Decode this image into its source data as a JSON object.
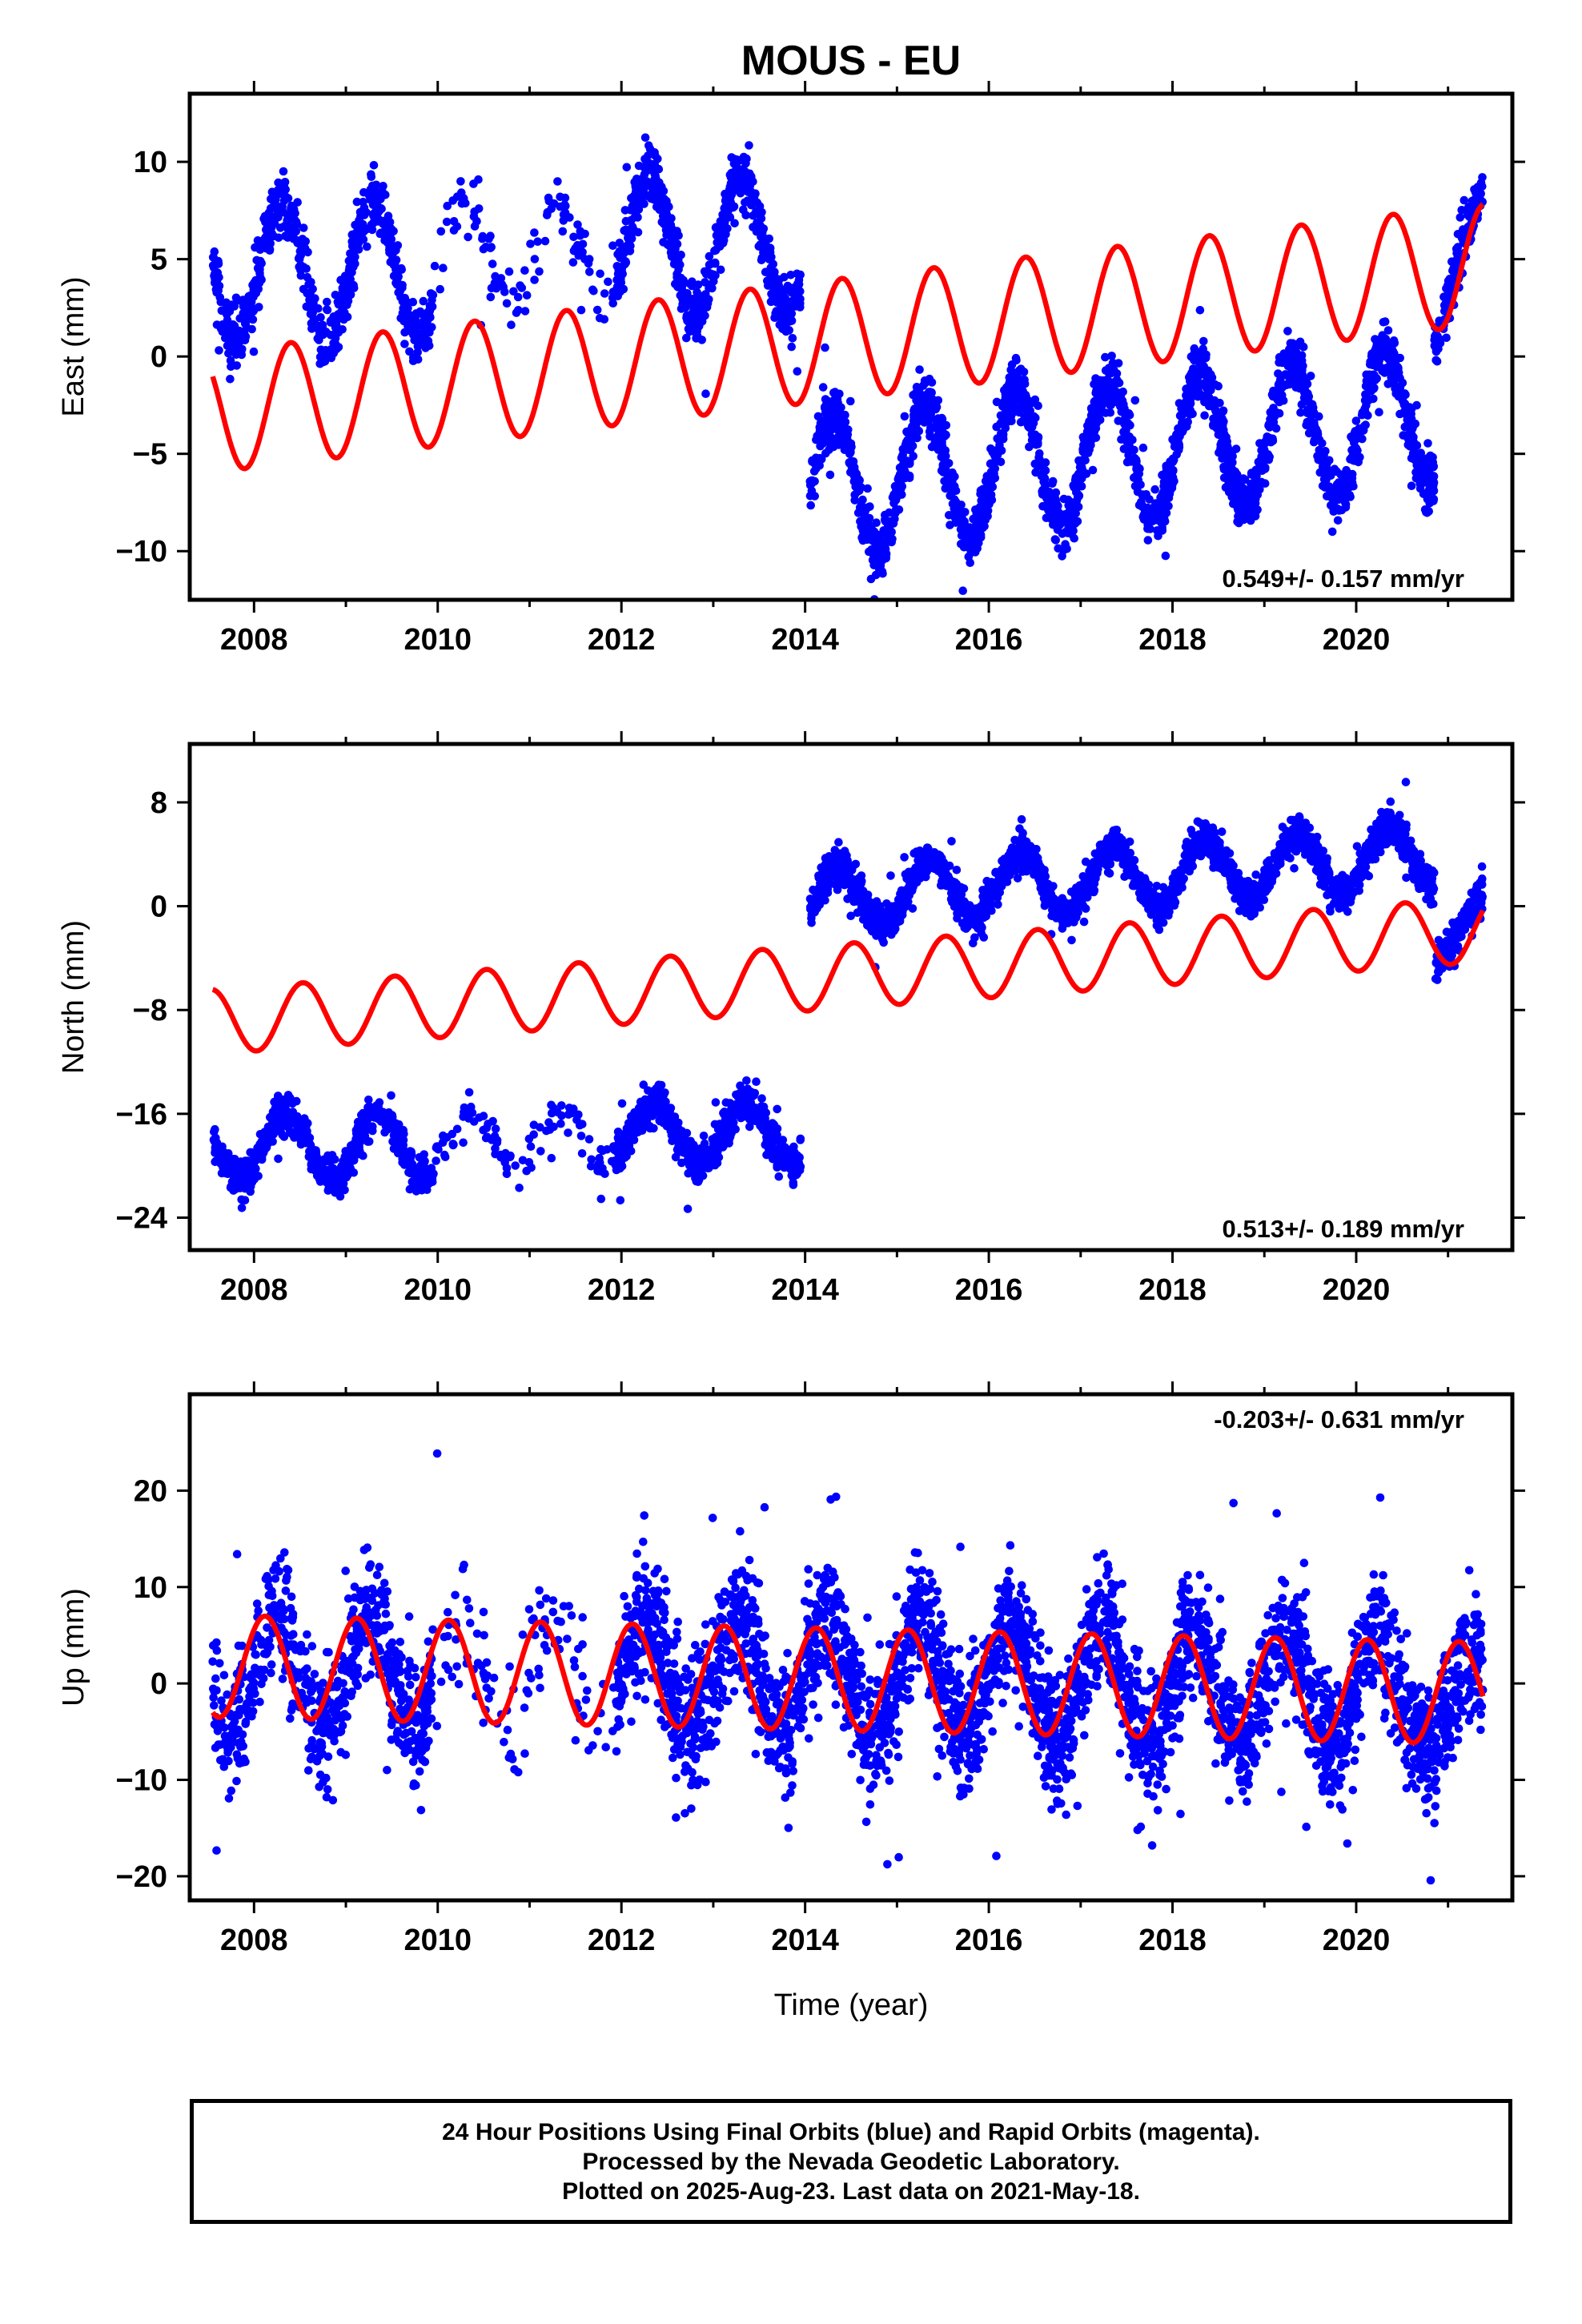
{
  "title": "MOUS - EU",
  "xlabel": "Time (year)",
  "colors": {
    "data": "#0000ff",
    "model": "#ff0000",
    "frame": "#000000"
  },
  "footer": {
    "line1": "24 Hour Positions Using Final Orbits (blue) and Rapid Orbits (magenta).",
    "line2": "Processed by the Nevada Geodetic Laboratory.",
    "line3": "Plotted on 2025-Aug-23. Last data on 2021-May-18."
  },
  "chart_data": [
    {
      "type": "scatter",
      "ylabel": "East (mm)",
      "xlim": [
        2007.3,
        2021.7
      ],
      "ylim": [
        -12.5,
        13.5
      ],
      "xticks": [
        2008,
        2010,
        2012,
        2014,
        2016,
        2018,
        2020
      ],
      "yticks": [
        -10,
        -5,
        0,
        5,
        10
      ],
      "ytick_labels": [
        "−10",
        "−5",
        "0",
        "5",
        "10"
      ],
      "rate_label": "0.549+/- 0.157 mm/yr",
      "rate_position": "bottom-right",
      "series": [
        {
          "role": "observations",
          "segments": [
            {
              "x0": 2007.55,
              "x1": 2009.95,
              "offset": 4.5,
              "amp": 3.5,
              "phase": 0.05,
              "trend": 0.0,
              "noise": 1.3,
              "n": 620
            },
            {
              "x0": 2009.95,
              "x1": 2011.95,
              "offset": 5.5,
              "amp": 2.5,
              "phase": 0.05,
              "trend": 0.0,
              "noise": 1.5,
              "n": 110
            },
            {
              "x0": 2011.95,
              "x1": 2013.95,
              "offset": 5.8,
              "amp": 3.5,
              "phase": 0.05,
              "trend": 0.0,
              "noise": 1.2,
              "n": 640
            },
            {
              "x0": 2014.05,
              "x1": 2020.85,
              "offset": -6.7,
              "amp": 3.6,
              "phase": 0.05,
              "trend": 0.549,
              "noise": 1.2,
              "n": 2200
            },
            {
              "x0": 2020.85,
              "x1": 2021.38,
              "offset": 1.4,
              "amp": 1.0,
              "phase": 0.05,
              "trend": 12.0,
              "noise": 1.0,
              "n": 170
            }
          ]
        },
        {
          "role": "model",
          "segments": [
            {
              "x0": 2007.55,
              "x1": 2021.38,
              "offset": -2.85,
              "amp": 3.1,
              "phase": 0.15,
              "trend": 0.549
            }
          ]
        }
      ]
    },
    {
      "type": "scatter",
      "ylabel": "North (mm)",
      "xlim": [
        2007.3,
        2021.7
      ],
      "ylim": [
        -26.5,
        12.5
      ],
      "xticks": [
        2008,
        2010,
        2012,
        2014,
        2016,
        2018,
        2020
      ],
      "yticks": [
        -24,
        -16,
        -8,
        0,
        8
      ],
      "ytick_labels": [
        "−24",
        "−16",
        "−8",
        "0",
        "8"
      ],
      "rate_label": "0.513+/- 0.189 mm/yr",
      "rate_position": "bottom-right",
      "series": [
        {
          "role": "observations",
          "segments": [
            {
              "x0": 2007.55,
              "x1": 2009.95,
              "offset": -18.5,
              "amp": 2.5,
              "phase": 0.1,
              "trend": 0.0,
              "noise": 1.2,
              "n": 620
            },
            {
              "x0": 2009.95,
              "x1": 2011.95,
              "offset": -18.0,
              "amp": 2.0,
              "phase": 0.1,
              "trend": 0.0,
              "noise": 1.4,
              "n": 110
            },
            {
              "x0": 2011.95,
              "x1": 2013.95,
              "offset": -17.5,
              "amp": 2.3,
              "phase": 0.1,
              "trend": 0.0,
              "noise": 1.2,
              "n": 640
            },
            {
              "x0": 2014.05,
              "x1": 2020.85,
              "offset": 0.5,
              "amp": 2.4,
              "phase": 0.1,
              "trend": 0.513,
              "noise": 1.1,
              "n": 2200
            },
            {
              "x0": 2020.85,
              "x1": 2021.38,
              "offset": -3.8,
              "amp": 0.8,
              "phase": 0.1,
              "trend": 7.0,
              "noise": 1.2,
              "n": 170
            }
          ]
        },
        {
          "role": "model",
          "segments": [
            {
              "x0": 2007.55,
              "x1": 2021.38,
              "offset": -8.9,
              "amp": 2.5,
              "phase": 0.28,
              "trend": 0.513
            }
          ]
        }
      ]
    },
    {
      "type": "scatter",
      "ylabel": "Up (mm)",
      "xlim": [
        2007.3,
        2021.7
      ],
      "ylim": [
        -22.5,
        30.0
      ],
      "xticks": [
        2008,
        2010,
        2012,
        2014,
        2016,
        2018,
        2020
      ],
      "yticks": [
        -20,
        -10,
        0,
        10,
        20
      ],
      "ytick_labels": [
        "−20",
        "−10",
        "0",
        "10",
        "20"
      ],
      "rate_label": "-0.203+/- 0.631 mm/yr",
      "rate_position": "top-right",
      "series": [
        {
          "role": "observations",
          "segments": [
            {
              "x0": 2007.55,
              "x1": 2009.95,
              "offset": 1.5,
              "amp": 6.0,
              "phase": 0.0,
              "trend": -0.203,
              "noise": 5.5,
              "n": 620
            },
            {
              "x0": 2009.95,
              "x1": 2011.95,
              "offset": 1.2,
              "amp": 5.0,
              "phase": 0.0,
              "trend": -0.203,
              "noise": 5.5,
              "n": 110
            },
            {
              "x0": 2011.95,
              "x1": 2020.85,
              "offset": 1.0,
              "amp": 6.0,
              "phase": 0.0,
              "trend": -0.203,
              "noise": 5.5,
              "n": 2840
            },
            {
              "x0": 2020.85,
              "x1": 2021.38,
              "offset": -2.5,
              "amp": 5.0,
              "phase": 0.0,
              "trend": -0.203,
              "noise": 5.5,
              "n": 170
            }
          ]
        },
        {
          "role": "model",
          "segments": [
            {
              "x0": 2007.55,
              "x1": 2021.38,
              "offset": 1.8,
              "amp": 5.3,
              "phase": 0.87,
              "trend": -0.203
            }
          ]
        }
      ]
    }
  ]
}
